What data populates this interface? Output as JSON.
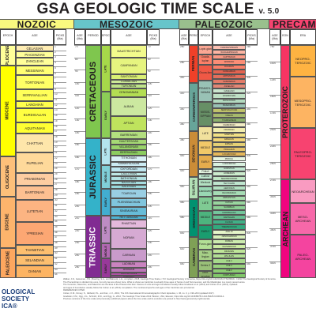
{
  "title": {
    "main": "GSA GEOLOGIC TIME SCALE",
    "version": "v. 5.0"
  },
  "eras": {
    "cenozoic": "NOZOIC",
    "mesozoic": "MESOZOIC",
    "paleozoic": "PALEOZOIC",
    "precambrian": "PRECAMB"
  },
  "headers": {
    "epoch": "EPOCH",
    "age": "AGE",
    "picks": "PICKS (Ma)",
    "age_ma": "AGE (Ma)",
    "period": "PERIOD",
    "eon": "EON",
    "era": "ERA"
  },
  "cenozoic": {
    "epochs": [
      "PLIOCENE",
      "MIOCENE",
      "OLIGOCENE",
      "EOCENE",
      "PALEOCENE"
    ],
    "ages": [
      "GELASIAN",
      "PIACENZIAN",
      "ZANCLEAN",
      "MESSINIAN",
      "TORTONIAN",
      "SERRAVALLIAN",
      "LANGHIAN",
      "BURDIGALIAN",
      "AQUITANIAN",
      "CHATTIAN",
      "RUPELIAN",
      "PRIABONIAN",
      "BARTONIAN",
      "LUTETIAN",
      "YPRESIAN",
      "THANETIAN",
      "SELANDIAN",
      "DANIAN"
    ]
  },
  "mesozoic": {
    "periods": [
      "CRETACEOUS",
      "JURASSIC",
      "TRIASSIC"
    ],
    "epochs": [
      "LATE",
      "EARLY",
      "LATE",
      "MIDDLE",
      "EARLY",
      "LATE",
      "MIDDLE",
      "EARLY"
    ],
    "ages": [
      "MAASTRICHTIAN",
      "CAMPANIAN",
      "SANTONIAN",
      "CONIACIAN",
      "TURONIAN",
      "CENOMANIAN",
      "ALBIAN",
      "APTIAN",
      "BARREMIAN",
      "HAUTERIVIAN",
      "VALANGINIAN",
      "BERRIASIAN",
      "TITHONIAN",
      "KIMMERIDGIAN",
      "OXFORDIAN",
      "CALLOVIAN",
      "BATHONIAN",
      "BAJOCIAN",
      "AALENIAN",
      "TOARCIAN",
      "PLIENSBACHIAN",
      "SINEMURIAN",
      "HETTANGIAN",
      "RHAETIAN",
      "NORIAN",
      "CARNIAN",
      "LADINIAN",
      "ANISIAN",
      "OLENEKIAN",
      "INDUAN"
    ]
  },
  "paleozoic": {
    "periods": [
      "PERMIAN",
      "CARBONIFEROUS",
      "DEVONIAN",
      "SILURIAN",
      "ORDOVICIAN",
      "CAMBRIAN"
    ],
    "ages": [
      "CHANGHSINGIAN",
      "WUCHIAPINGIAN",
      "CAPITANIAN",
      "WORDIAN",
      "ROADIAN",
      "KUNGURIAN",
      "ARTINSKIAN",
      "SAKMARIAN",
      "ASSELIAN",
      "GZHELIAN",
      "KASIMOVIAN",
      "MOSCOVIAN",
      "BASHKIRIAN",
      "SERPUKHOVIAN",
      "VISEAN",
      "TOURNAISIAN",
      "FAMENNIAN",
      "FRASNIAN",
      "GIVETIAN",
      "EIFELIAN",
      "EMSIAN",
      "PRAGHIAN",
      "LOCHKOVIAN",
      "PRIDOLI",
      "LUDFORDIAN",
      "GORSTIAN",
      "HOMERIAN",
      "SHEINWOODIAN",
      "TELYCHIAN",
      "AERONIAN",
      "RHUDDANIAN",
      "HIRNANTIAN",
      "KATIAN",
      "SANDBIAN",
      "DARRIWILIAN",
      "DAPINGIAN",
      "FLOIAN",
      "TREMADOCIAN",
      "AGE 10",
      "JIANGSHANIAN",
      "PAIBIAN",
      "GUZHANGIAN",
      "DRUMIAN",
      "WULIUAN",
      "AGE 4",
      "AGE 3",
      "AGE 2",
      "FORTUNIAN"
    ],
    "epochs": [
      "Lopin-gian",
      "Guada-lupian",
      "Cisura-lian",
      "PENNSYL-VANIAN",
      "MISSIS-SIPPIAN",
      "LATE",
      "MIDDLE",
      "EARLY",
      "Pridoli",
      "Ludlow",
      "Wenlock",
      "Llandovery",
      "LATE",
      "MIDDLE",
      "EARLY",
      "Furon-gian",
      "Miao-lingian",
      "Series 2",
      "Terre-neuvian"
    ]
  },
  "precambrian": {
    "eons": [
      "PROTEROZOIC",
      "ARCHEAN"
    ],
    "eras": [
      "NEOPRO-TEROZOIC",
      "MESOPRO-TEROZOIC",
      "PALEOPRO-TEROZOIC",
      "NEOARCHEAN",
      "MESO-ARCHEAN",
      "PALEO-ARCHEAN"
    ]
  },
  "ticks": {
    "cenozoic": [
      "1",
      "2",
      "3",
      "4",
      "5",
      "6",
      "7",
      "8",
      "9",
      "10",
      "11",
      "12",
      "13",
      "14",
      "15",
      "16",
      "17",
      "18",
      "19",
      "20",
      "21",
      "22",
      "23",
      "24",
      "25",
      "26",
      "27",
      "28",
      "29",
      "30",
      "31",
      "32",
      "33",
      "34",
      "35",
      "36",
      "37",
      "38",
      "39",
      "40",
      "41",
      "42",
      "43",
      "44"
    ],
    "mesozoic": [
      "70",
      "80",
      "90",
      "100",
      "110",
      "120",
      "130",
      "140",
      "150",
      "160",
      "170",
      "180",
      "190",
      "200",
      "210",
      "220",
      "230",
      "240",
      "250"
    ],
    "paleozoic": [
      "260",
      "280",
      "300",
      "320",
      "340",
      "360",
      "380",
      "400",
      "420",
      "440",
      "460",
      "480",
      "500",
      "520",
      "540"
    ],
    "precambrian": [
      "750",
      "1000",
      "1250",
      "1500",
      "1750",
      "2000",
      "2250",
      "2500",
      "2750",
      "3000",
      "3250",
      "3500",
      "3750",
      "4000"
    ]
  },
  "logo": {
    "line1": "OLOGICAL SOCIETY",
    "line2": "ICA®"
  },
  "footer": [
    "Walker, J.D., Geissman, J.W., Bowring, S.A., and Babcock, L.E., compilers, 2018, Geologic Time Scale v. 5.0: Geological Society of America, https://doi.org/10.1130/2018.CTS005R3C. ©2018 The Geological Society of America.",
    "The Precambrian is divided into eons, but only two are shown here. What is shown as Cambrian is actually three ages of Series 2 and Terreneuvian, and the Miaolingian is a newly named series.",
    "The Cenozoic, Mesozoic, and Paleozoic are the Eras of the Phanerozoic Eon. Names of units and age boundaries usually follow Gradstein et al. (2012) and Cohen et al. (2013), updated.",
    "and ages of boundaries usually follow the Cohen et al. (2013) compilation. The numbered epochs and ages of the Cambrian are provisional.",
    "REFERENCES CITED",
    "Cohen, K.M., Finney, S., Gibbard, P.L., and Fan, J.-X., 2013, The ICS International Chronostratigraphic Chart: Episodes, v. 36, no. 3, p. 199–204 (updated 2017).",
    "Gradstein, F.M., Ogg, J.G., Schmitz, M.D., and Ogg, G., 2012, The Geologic Time Scale 2012: Boston, USA, Elsevier, https://doi.org/10.1016/B978-0-444-59425-9.00004-4.",
    "Previous versions of the time scale and previously published papers about the time scale and its evolution are posted to http://www.geosociety.org/timescale."
  ],
  "colors": {
    "cenozoic": "#f2f91d",
    "mesozoic": "#67c5ca",
    "paleozoic": "#99c08d",
    "precambrian": "#f74370"
  }
}
